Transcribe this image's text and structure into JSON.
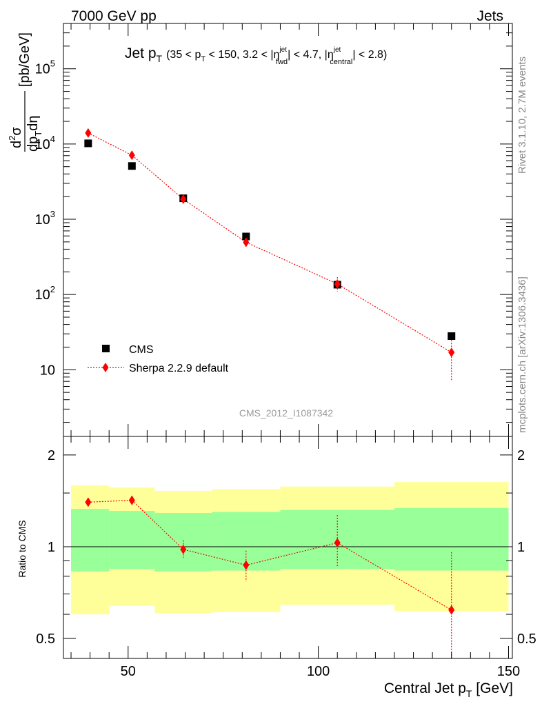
{
  "header": {
    "left": "7000 GeV pp",
    "right": "Jets"
  },
  "side_labels": {
    "rivet": "Rivet 3.1.10,  2.7M events",
    "mcplots": "mcplots.cern.ch [arXiv:1306.3436]"
  },
  "watermark": "CMS_2012_I1087342",
  "title": {
    "main": "Jet p",
    "main_sub": "T",
    "cut_open": "(35 < p",
    "cut_sub1": "T",
    "cut_mid1": " < 150, 3.2 < |η",
    "eta1_sup": "jet",
    "eta1_sub": "fwd",
    "cut_mid2": "| < 4.7, |η",
    "eta2_sup": "jet",
    "eta2_sub": "central",
    "cut_close": "| < 2.8)"
  },
  "ylabel_main": {
    "num_d": "d",
    "num_sup": "2",
    "num_sigma": "σ",
    "den": "dp",
    "den_sub": "T",
    "den_tail": "dη",
    "units": "[pb/GeV]"
  },
  "ylabel_ratio": "Ratio to CMS",
  "xlabel": {
    "text": "Central Jet p",
    "sub": "T",
    "units": " [GeV]"
  },
  "colors": {
    "cms": "#000000",
    "sherpa": "#ff0000",
    "band_inner": "#99ff99",
    "band_outer": "#ffff99"
  },
  "chart_data": {
    "type": "scatter",
    "x_range": [
      33,
      151
    ],
    "main": {
      "y_scale": "log",
      "y_range": [
        1.3,
        400000
      ],
      "y_ticks": [
        {
          "value": 10,
          "base": "10",
          "exp": ""
        },
        {
          "value": 100,
          "base": "10",
          "exp": "2"
        },
        {
          "value": 1000,
          "base": "10",
          "exp": "3"
        },
        {
          "value": 10000,
          "base": "10",
          "exp": "4"
        },
        {
          "value": 100000,
          "base": "10",
          "exp": "5"
        }
      ]
    },
    "ratio": {
      "y_scale": "log",
      "y_range": [
        0.43,
        2.3
      ],
      "y_ticks": [
        {
          "value": 0.5,
          "label": "0.5"
        },
        {
          "value": 1,
          "label": "1"
        },
        {
          "value": 2,
          "label": "2"
        }
      ]
    },
    "x_ticks": [
      {
        "value": 50,
        "label": "50"
      },
      {
        "value": 100,
        "label": "100"
      },
      {
        "value": 150,
        "label": "150"
      }
    ],
    "legend": {
      "position": "bottom-left",
      "entries": [
        "CMS",
        "Sherpa 2.2.9 default"
      ]
    },
    "series": [
      {
        "name": "CMS",
        "marker": "square",
        "points": [
          {
            "x": 39.5,
            "y": 10200
          },
          {
            "x": 51,
            "y": 5100
          },
          {
            "x": 64.5,
            "y": 1900
          },
          {
            "x": 81,
            "y": 590
          },
          {
            "x": 105,
            "y": 135
          },
          {
            "x": 135,
            "y": 28
          }
        ]
      },
      {
        "name": "Sherpa 2.2.9 default",
        "marker": "diamond",
        "line": "dotted",
        "points": [
          {
            "x": 39.5,
            "y": 14000,
            "ylo": 13400,
            "yhi": 14600
          },
          {
            "x": 51,
            "y": 7100,
            "ylo": 6600,
            "yhi": 7600
          },
          {
            "x": 64.5,
            "y": 1850,
            "ylo": 1720,
            "yhi": 1990
          },
          {
            "x": 81,
            "y": 495,
            "ylo": 430,
            "yhi": 560
          },
          {
            "x": 105,
            "y": 138,
            "ylo": 110,
            "yhi": 170
          },
          {
            "x": 135,
            "y": 17,
            "ylo": 7,
            "yhi": 27
          }
        ]
      }
    ],
    "ratio_points": [
      {
        "x": 39.5,
        "y": 1.4,
        "ylo": 1.36,
        "yhi": 1.44
      },
      {
        "x": 51,
        "y": 1.42,
        "ylo": 1.37,
        "yhi": 1.47
      },
      {
        "x": 64.5,
        "y": 0.98,
        "ylo": 0.92,
        "yhi": 1.05
      },
      {
        "x": 81,
        "y": 0.87,
        "ylo": 0.77,
        "yhi": 0.97
      },
      {
        "x": 105,
        "y": 1.03,
        "ylo": 0.86,
        "yhi": 1.27
      },
      {
        "x": 135,
        "y": 0.62,
        "ylo": 0.4,
        "yhi": 0.96
      }
    ],
    "ratio_bands": [
      {
        "x0": 35,
        "x1": 45,
        "inner": [
          0.83,
          1.33
        ],
        "outer": [
          0.6,
          1.59
        ]
      },
      {
        "x0": 45,
        "x1": 57,
        "inner": [
          0.845,
          1.31
        ],
        "outer": [
          0.64,
          1.565
        ]
      },
      {
        "x0": 57,
        "x1": 72,
        "inner": [
          0.83,
          1.29
        ],
        "outer": [
          0.605,
          1.525
        ]
      },
      {
        "x0": 72,
        "x1": 90,
        "inner": [
          0.835,
          1.3
        ],
        "outer": [
          0.61,
          1.545
        ]
      },
      {
        "x0": 90,
        "x1": 120,
        "inner": [
          0.845,
          1.32
        ],
        "outer": [
          0.645,
          1.575
        ]
      },
      {
        "x0": 120,
        "x1": 150,
        "inner": [
          0.835,
          1.34
        ],
        "outer": [
          0.615,
          1.63
        ]
      }
    ]
  }
}
